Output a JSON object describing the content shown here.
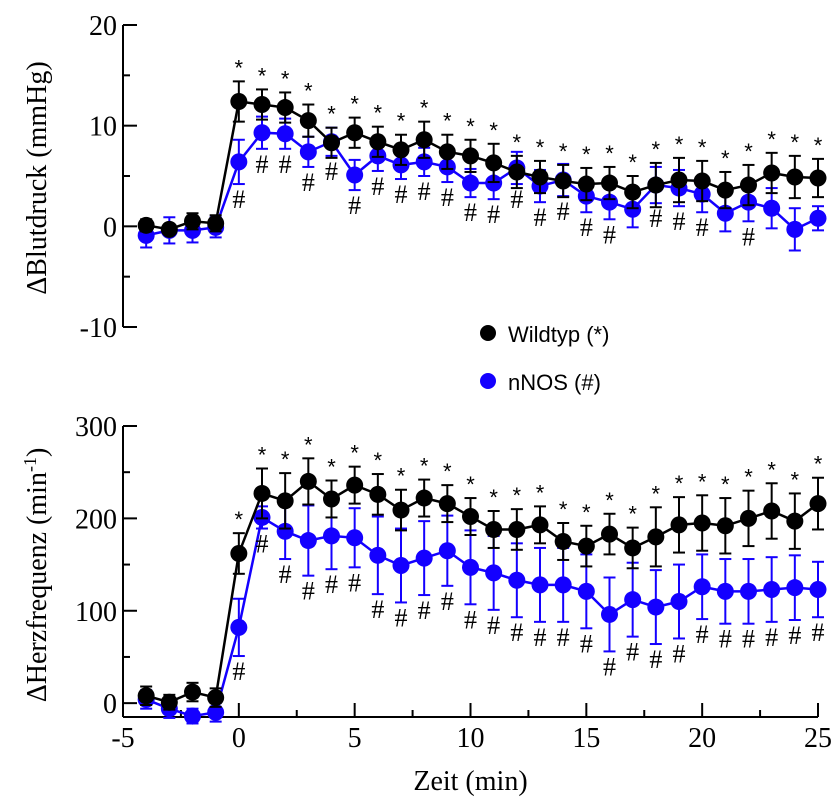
{
  "legend": {
    "wildtyp_label": "Wildtyp (*)",
    "nnos_label": "nNOS (#)"
  },
  "colors": {
    "wildtyp": "#000000",
    "nnos": "#1400ff"
  },
  "chart_data": [
    {
      "type": "line",
      "ylabel": "ΔBlutdruck (mmHg)",
      "xlabel": "",
      "xlim": [
        -5,
        25
      ],
      "ylim": [
        -10,
        20
      ],
      "yticks": [
        "20",
        "10",
        "0",
        "-10"
      ],
      "x": [
        -4,
        -3,
        -2,
        -1,
        0,
        1,
        2,
        3,
        4,
        5,
        6,
        7,
        8,
        9,
        10,
        11,
        12,
        13,
        14,
        15,
        16,
        17,
        18,
        19,
        20,
        21,
        22,
        23,
        24,
        25
      ],
      "series": [
        {
          "name": "Wildtyp (*)",
          "values": [
            0.1,
            -0.3,
            0.5,
            0.3,
            12.4,
            12.1,
            11.8,
            10.5,
            8.3,
            9.3,
            8.4,
            7.6,
            8.6,
            7.4,
            7.0,
            6.3,
            5.4,
            4.9,
            4.5,
            4.2,
            4.3,
            3.4,
            4.1,
            4.6,
            4.5,
            3.6,
            4.1,
            5.3,
            4.9,
            4.8
          ],
          "error": [
            0.6,
            0.5,
            0.8,
            0.8,
            2.0,
            1.5,
            1.5,
            1.6,
            1.5,
            1.5,
            1.5,
            1.5,
            1.8,
            1.7,
            1.6,
            1.9,
            1.6,
            1.6,
            1.6,
            1.6,
            1.6,
            1.6,
            2.2,
            2.2,
            2.0,
            1.8,
            2.0,
            2.0,
            2.1,
            1.9
          ]
        },
        {
          "name": "nNOS (#)",
          "values": [
            -0.9,
            -0.4,
            -0.4,
            -0.1,
            6.4,
            9.3,
            9.2,
            7.4,
            8.4,
            5.1,
            7.0,
            6.1,
            6.4,
            5.9,
            4.3,
            4.3,
            5.8,
            4.0,
            4.6,
            3.0,
            2.4,
            1.7,
            4.1,
            3.8,
            3.2,
            1.3,
            2.4,
            1.8,
            -0.3,
            0.8
          ],
          "error": [
            1.2,
            1.3,
            1.2,
            1.0,
            2.2,
            1.6,
            1.5,
            1.5,
            1.4,
            1.5,
            1.5,
            1.4,
            1.4,
            1.5,
            1.4,
            1.6,
            1.6,
            1.6,
            1.6,
            1.6,
            1.7,
            1.8,
            1.8,
            1.8,
            1.8,
            1.8,
            1.9,
            2.0,
            2.1,
            1.2
          ]
        }
      ],
      "annotations": {
        "stars": [
          0,
          1,
          2,
          3,
          4,
          5,
          6,
          7,
          8,
          9,
          10,
          11,
          12,
          13,
          14,
          15,
          16,
          17,
          18,
          19,
          20,
          21,
          22,
          23,
          24,
          25
        ],
        "hashes": [
          {
            "x": 0,
            "text": "#"
          },
          {
            "x": 1,
            "text": "#"
          },
          {
            "x": 2,
            "text": "#"
          },
          {
            "x": 3,
            "text": "#"
          },
          {
            "x": 4,
            "text": "#"
          },
          {
            "x": 5,
            "text": "#"
          },
          {
            "x": 6,
            "text": "#"
          },
          {
            "x": 7,
            "text": "#"
          },
          {
            "x": 8,
            "text": "#"
          },
          {
            "x": 9,
            "text": "#"
          },
          {
            "x": 10,
            "text": "#"
          },
          {
            "x": 11,
            "text": "#"
          },
          {
            "x": 12,
            "text": "#"
          },
          {
            "x": 13,
            "text": "#"
          },
          {
            "x": 14,
            "text": "#"
          },
          {
            "x": 15,
            "text": "#"
          },
          {
            "x": 16,
            "text": "#"
          },
          {
            "x": 18,
            "text": "#"
          },
          {
            "x": 19,
            "text": "#"
          },
          {
            "x": 20,
            "text": "#"
          },
          {
            "x": 22,
            "text": "#"
          }
        ]
      }
    },
    {
      "type": "line",
      "ylabel": "ΔHerzfrequenz (min",
      "ylabel_sup": "-1",
      "ylabel_end": ")",
      "xlabel": "Zeit (min)",
      "xlim": [
        -5,
        25
      ],
      "ylim": [
        -15,
        300
      ],
      "xticks": [
        "-5",
        "0",
        "5",
        "10",
        "15",
        "20",
        "25"
      ],
      "yticks": [
        "300",
        "200",
        "100",
        "0"
      ],
      "x": [
        -4,
        -3,
        -2,
        -1,
        0,
        1,
        2,
        3,
        4,
        5,
        6,
        7,
        8,
        9,
        10,
        11,
        12,
        13,
        14,
        15,
        16,
        17,
        18,
        19,
        20,
        21,
        22,
        23,
        24,
        25
      ],
      "series": [
        {
          "name": "Wildtyp (*)",
          "values": [
            8,
            1,
            12,
            6,
            162,
            227,
            219,
            240,
            221,
            236,
            226,
            209,
            222,
            216,
            202,
            188,
            188,
            193,
            175,
            170,
            183,
            168,
            180,
            193,
            195,
            192,
            200,
            208,
            197,
            216
          ],
          "error": [
            10,
            8,
            10,
            10,
            22,
            27,
            30,
            25,
            20,
            20,
            22,
            22,
            20,
            20,
            20,
            20,
            22,
            20,
            20,
            22,
            22,
            22,
            32,
            30,
            30,
            30,
            30,
            30,
            30,
            28
          ]
        },
        {
          "name": "nNOS (#)",
          "values": [
            4,
            -6,
            -14,
            -10,
            82,
            201,
            186,
            176,
            181,
            179,
            160,
            149,
            157,
            165,
            147,
            141,
            133,
            128,
            128,
            121,
            96,
            112,
            104,
            110,
            126,
            121,
            121,
            123,
            125,
            123
          ],
          "error": [
            10,
            10,
            8,
            10,
            31,
            12,
            30,
            38,
            36,
            32,
            42,
            40,
            40,
            38,
            40,
            40,
            40,
            40,
            40,
            40,
            40,
            40,
            40,
            40,
            35,
            35,
            35,
            35,
            35,
            30
          ]
        }
      ],
      "annotations": {
        "stars": [
          0,
          1,
          2,
          3,
          4,
          5,
          6,
          7,
          8,
          9,
          10,
          11,
          12,
          13,
          14,
          15,
          16,
          17,
          18,
          19,
          20,
          21,
          22,
          23,
          24,
          25
        ],
        "hashes": [
          {
            "x": 0,
            "text": "#"
          },
          {
            "x": 1,
            "text": "#"
          },
          {
            "x": 2,
            "text": "#"
          },
          {
            "x": 3,
            "text": "#"
          },
          {
            "x": 4,
            "text": "#"
          },
          {
            "x": 5,
            "text": "#"
          },
          {
            "x": 6,
            "text": "#"
          },
          {
            "x": 7,
            "text": "#"
          },
          {
            "x": 8,
            "text": "#"
          },
          {
            "x": 9,
            "text": "#"
          },
          {
            "x": 10,
            "text": "#"
          },
          {
            "x": 11,
            "text": "#"
          },
          {
            "x": 12,
            "text": "#"
          },
          {
            "x": 13,
            "text": "#"
          },
          {
            "x": 14,
            "text": "#"
          },
          {
            "x": 15,
            "text": "#"
          },
          {
            "x": 16,
            "text": "#"
          },
          {
            "x": 17,
            "text": "#"
          },
          {
            "x": 18,
            "text": "#"
          },
          {
            "x": 19,
            "text": "#"
          },
          {
            "x": 20,
            "text": "#"
          },
          {
            "x": 21,
            "text": "#"
          },
          {
            "x": 22,
            "text": "#"
          },
          {
            "x": 23,
            "text": "#"
          },
          {
            "x": 24,
            "text": "#"
          },
          {
            "x": 25,
            "text": "#"
          }
        ]
      }
    }
  ]
}
